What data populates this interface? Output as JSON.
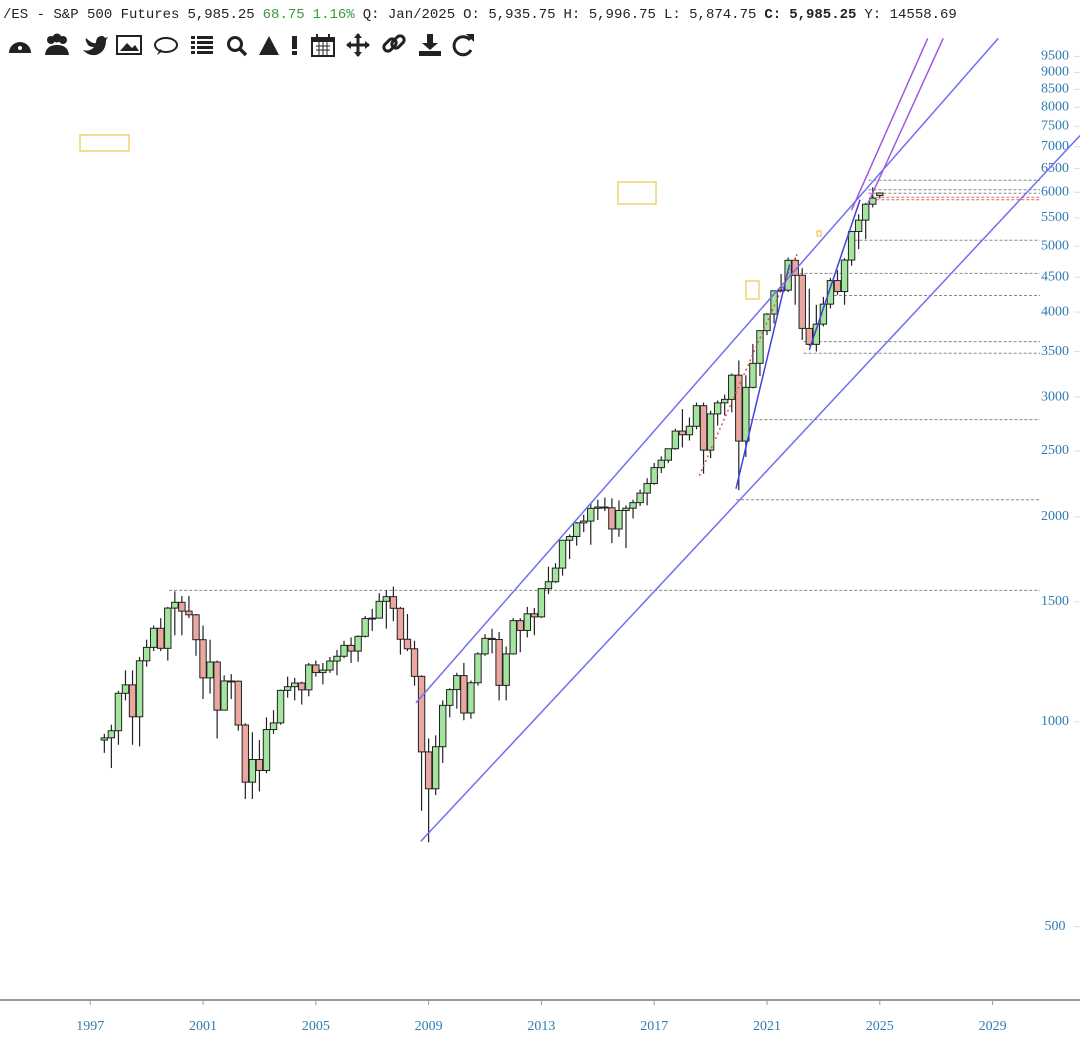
{
  "chart_data": {
    "type": "candlestick",
    "header": {
      "symbol": "/ES - S&P 500 Futures",
      "price": "5,985.25",
      "change": "68.75",
      "change_pct": "1.16%",
      "period": "Q: Jan/2025",
      "open": "O: 5,935.75",
      "high": "H: 5,996.75",
      "low": "L: 5,874.75",
      "close_label": "C:",
      "close": "5,985.25",
      "extra": "Y: 14558.69"
    },
    "log_scale": true,
    "up_color": "#a3e49e",
    "down_color": "#e9a7a0",
    "x": [
      1997.5,
      1997.75,
      1998,
      1998.25,
      1998.5,
      1998.75,
      1999,
      1999.25,
      1999.5,
      1999.75,
      2000,
      2000.25,
      2000.5,
      2000.75,
      2001,
      2001.25,
      2001.5,
      2001.75,
      2002,
      2002.25,
      2002.5,
      2002.75,
      2003,
      2003.25,
      2003.5,
      2003.75,
      2004,
      2004.25,
      2004.5,
      2004.75,
      2005,
      2005.25,
      2005.5,
      2005.75,
      2006,
      2006.25,
      2006.5,
      2006.75,
      2007,
      2007.25,
      2007.5,
      2007.75,
      2008,
      2008.25,
      2008.5,
      2008.75,
      2009,
      2009.25,
      2009.5,
      2009.75,
      2010,
      2010.25,
      2010.5,
      2010.75,
      2011,
      2011.25,
      2011.5,
      2011.75,
      2012,
      2012.25,
      2012.5,
      2012.75,
      2013,
      2013.25,
      2013.5,
      2013.75,
      2014,
      2014.25,
      2014.5,
      2014.75,
      2015,
      2015.25,
      2015.5,
      2015.75,
      2016,
      2016.25,
      2016.5,
      2016.75,
      2017,
      2017.25,
      2017.5,
      2017.75,
      2018,
      2018.25,
      2018.5,
      2018.75,
      2019,
      2019.25,
      2019.5,
      2019.75,
      2020,
      2020.25,
      2020.5,
      2020.75,
      2021,
      2021.25,
      2021.5,
      2021.75,
      2022,
      2022.25,
      2022.5,
      2022.75,
      2023,
      2023.25,
      2023.5,
      2023.75,
      2024,
      2024.25,
      2024.5,
      2024.75,
      2025
    ],
    "open": [
      940,
      947,
      970,
      1101,
      1133,
      1017,
      1229,
      1286,
      1372,
      1282,
      1469,
      1498,
      1454,
      1436,
      1320,
      1160,
      1224,
      1040,
      1148,
      1147,
      989,
      815,
      880,
      848,
      974,
      996,
      1112,
      1126,
      1140,
      1114,
      1212,
      1181,
      1191,
      1228,
      1248,
      1295,
      1270,
      1335,
      1418,
      1420,
      1503,
      1527,
      1468,
      1322,
      1280,
      1166,
      903,
      797,
      919,
      1057,
      1115,
      1169,
      1030,
      1141,
      1258,
      1326,
      1321,
      1131,
      1258,
      1408,
      1362,
      1441,
      1426,
      1569,
      1606,
      1682,
      1848,
      1872,
      1960,
      1972,
      2059,
      2068,
      2063,
      1920,
      2044,
      2060,
      2099,
      2168,
      2239,
      2363,
      2423,
      2519,
      2674,
      2641,
      2718,
      2914,
      2507,
      2834,
      2942,
      2977,
      3231,
      2585,
      3100,
      3363,
      3756,
      3973,
      4298,
      4308,
      4766,
      4530,
      3785,
      3586,
      3840,
      4109,
      4450,
      4288,
      4770,
      5254,
      5460,
      5762,
      5935.75
    ],
    "high": [
      960,
      990,
      1110,
      1190,
      1190,
      1245,
      1320,
      1385,
      1420,
      1475,
      1555,
      1530,
      1530,
      1440,
      1385,
      1320,
      1230,
      1170,
      1175,
      1150,
      995,
      965,
      940,
      1015,
      1040,
      1115,
      1165,
      1160,
      1145,
      1220,
      1230,
      1220,
      1245,
      1275,
      1315,
      1330,
      1340,
      1430,
      1465,
      1545,
      1560,
      1580,
      1475,
      1440,
      1315,
      1170,
      945,
      955,
      1075,
      1120,
      1180,
      1220,
      1150,
      1265,
      1345,
      1370,
      1355,
      1290,
      1420,
      1420,
      1475,
      1470,
      1570,
      1690,
      1710,
      1850,
      1885,
      1965,
      2015,
      2095,
      2120,
      2135,
      2130,
      2115,
      2080,
      2120,
      2195,
      2280,
      2400,
      2455,
      2520,
      2695,
      2880,
      2800,
      2945,
      2945,
      2865,
      2965,
      3025,
      3250,
      3395,
      3230,
      3590,
      3760,
      3985,
      4300,
      4550,
      4810,
      4810,
      4640,
      4330,
      4100,
      4210,
      4490,
      4610,
      4800,
      5265,
      5570,
      5790,
      6100,
      5996.75
    ],
    "low": [
      900,
      855,
      925,
      1075,
      925,
      920,
      1205,
      1270,
      1270,
      1230,
      1340,
      1340,
      1420,
      1250,
      1080,
      1100,
      945,
      1040,
      1080,
      970,
      770,
      770,
      790,
      840,
      960,
      990,
      1085,
      1075,
      1060,
      1090,
      1165,
      1135,
      1180,
      1170,
      1240,
      1220,
      1225,
      1330,
      1360,
      1420,
      1370,
      1405,
      1255,
      1270,
      1130,
      740,
      665,
      780,
      870,
      1015,
      1045,
      1005,
      1010,
      1130,
      1250,
      1260,
      1075,
      1075,
      1255,
      1265,
      1330,
      1340,
      1420,
      1540,
      1600,
      1640,
      1735,
      1815,
      1900,
      1820,
      1980,
      2040,
      1830,
      1870,
      1800,
      1990,
      2075,
      2080,
      2230,
      2320,
      2400,
      2510,
      2530,
      2590,
      2690,
      2315,
      2440,
      2725,
      2820,
      2850,
      2190,
      2450,
      3090,
      3220,
      3700,
      3850,
      4290,
      4280,
      4100,
      3640,
      3570,
      3500,
      3810,
      4050,
      4240,
      4100,
      4680,
      4950,
      5120,
      5700,
      5874.75
    ],
    "close": [
      947,
      970,
      1101,
      1133,
      1017,
      1229,
      1286,
      1372,
      1282,
      1469,
      1498,
      1454,
      1436,
      1320,
      1160,
      1224,
      1040,
      1148,
      1147,
      989,
      815,
      880,
      848,
      974,
      996,
      1112,
      1126,
      1140,
      1114,
      1212,
      1181,
      1191,
      1228,
      1248,
      1295,
      1270,
      1335,
      1418,
      1420,
      1503,
      1527,
      1468,
      1322,
      1280,
      1166,
      903,
      797,
      919,
      1057,
      1115,
      1169,
      1030,
      1141,
      1258,
      1326,
      1321,
      1131,
      1258,
      1408,
      1362,
      1441,
      1426,
      1569,
      1606,
      1682,
      1848,
      1872,
      1960,
      1972,
      2059,
      2068,
      2063,
      1920,
      2044,
      2060,
      2099,
      2168,
      2239,
      2363,
      2423,
      2519,
      2674,
      2641,
      2718,
      2914,
      2507,
      2834,
      2942,
      2977,
      3231,
      2585,
      3100,
      3363,
      3756,
      3973,
      4298,
      4308,
      4766,
      4530,
      3785,
      3586,
      3840,
      4109,
      4450,
      4288,
      4770,
      5254,
      5460,
      5762,
      5882,
      5985.25
    ],
    "xlim": [
      1993.8,
      2032.1
    ],
    "ylim": [
      390,
      11500
    ],
    "xticks": [
      1997,
      2001,
      2005,
      2009,
      2013,
      2017,
      2021,
      2025,
      2029
    ],
    "yticks": [
      500,
      1000,
      1500,
      2000,
      2500,
      3000,
      3500,
      4000,
      4500,
      5000,
      5500,
      6000,
      6500,
      7000,
      7500,
      8000,
      8500,
      9000,
      9500
    ],
    "levels": [
      {
        "price": 1560,
        "from": 1999.8,
        "color": "#888888"
      },
      {
        "price": 2120,
        "from": 2019.9,
        "color": "#888888"
      },
      {
        "price": 2780,
        "from": 2020.2,
        "color": "#888888"
      },
      {
        "price": 3480,
        "from": 2022.3,
        "color": "#888888"
      },
      {
        "price": 3620,
        "from": 2022.3,
        "color": "#888888"
      },
      {
        "price": 4230,
        "from": 2023.2,
        "color": "#888888"
      },
      {
        "price": 4560,
        "from": 2021.8,
        "color": "#888888"
      },
      {
        "price": 5100,
        "from": 2024.1,
        "color": "#888888"
      },
      {
        "price": 5980,
        "from": 2024.6,
        "color": "#888888"
      },
      {
        "price": 6050,
        "from": 2024.6,
        "color": "#888888"
      },
      {
        "price": 6250,
        "from": 2024.6,
        "color": "#888888"
      },
      {
        "price": 5850,
        "from": 2024.7,
        "color": "#e06060"
      },
      {
        "price": 5900,
        "from": 2024.7,
        "color": "#e06060"
      }
    ],
    "trendlines": [
      {
        "points": [
          [
            2008.55,
            1066
          ],
          [
            2029.2,
            10100
          ]
        ],
        "color": "#6f6ff0",
        "dash": false
      },
      {
        "points": [
          [
            2008.72,
            667
          ],
          [
            2032.1,
            7270
          ]
        ],
        "color": "#6f6ff0",
        "dash": false
      },
      {
        "points": [
          [
            2024.0,
            5650
          ],
          [
            2026.7,
            10100
          ]
        ],
        "color": "#a05ae0",
        "dash": false
      },
      {
        "points": [
          [
            2024.55,
            5740
          ],
          [
            2027.25,
            10100
          ]
        ],
        "color": "#a05ae0",
        "dash": false
      },
      {
        "points": [
          [
            2019.9,
            2200
          ],
          [
            2021.8,
            4700
          ]
        ],
        "color": "#4040e0",
        "dash": false
      },
      {
        "points": [
          [
            2022.5,
            3520
          ],
          [
            2024.3,
            5850
          ]
        ],
        "color": "#4040e0",
        "dash": false
      },
      {
        "points": [
          [
            2018.6,
            2300
          ],
          [
            2022.1,
            4900
          ]
        ],
        "color": "#e05050",
        "dash": true
      }
    ]
  }
}
